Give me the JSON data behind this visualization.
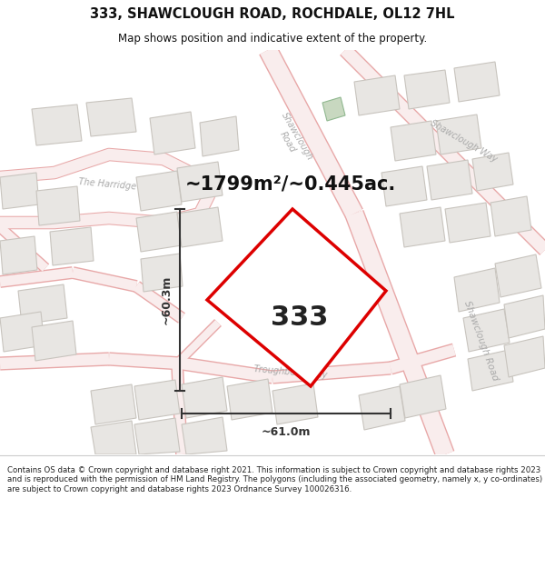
{
  "title_line1": "333, SHAWCLOUGH ROAD, ROCHDALE, OL12 7HL",
  "title_line2": "Map shows position and indicative extent of the property.",
  "area_label": "~1799m²/~0.445ac.",
  "property_number": "333",
  "dim_width": "~61.0m",
  "dim_height": "~60.3m",
  "copyright_text": "Contains OS data © Crown copyright and database right 2021. This information is subject to Crown copyright and database rights 2023 and is reproduced with the permission of HM Land Registry. The polygons (including the associated geometry, namely x, y co-ordinates) are subject to Crown copyright and database rights 2023 Ordnance Survey 100026316.",
  "bg_color": "#ffffff",
  "map_bg": "#f9f8f6",
  "road_stroke": "#f0b8b8",
  "road_fill": "#f8eded",
  "building_fill": "#e8e6e3",
  "building_edge": "#c8c4be",
  "property_fill": "#ffffff",
  "property_edge": "#dd0000",
  "dim_line_color": "#333333",
  "title_color": "#111111",
  "area_color": "#111111",
  "number_color": "#222222",
  "road_label_color": "#aaaaaa",
  "green_fill": "#c8d8c0"
}
